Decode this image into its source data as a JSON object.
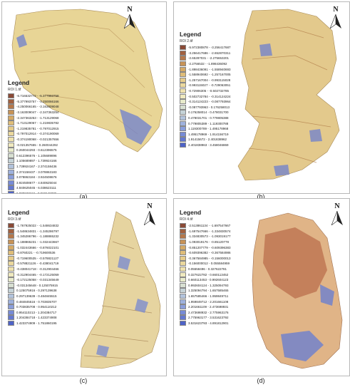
{
  "panels": {
    "a": {
      "caption": "(a)",
      "legend_title": "Legend",
      "file": "ROI 1.tif",
      "north": "N",
      "ranges": [
        "-6.716532772 - -5.377993758",
        "-5.377993757 - -4.250066166",
        "-4.250066165 - -3.163009048",
        "-3.163009047 - -2.347363254",
        "-2.347363253 - -1.713129068",
        "-1.713129067 - -1.219835782",
        "-1.219835781 - -0.797012915",
        "-0.797012914 - -0.374190069",
        "-0.374190068 - -0.021357656",
        "-0.021357655 - 0.260044292",
        "0.260044293 - 0.612396575",
        "0.612396576 - 1.105689896",
        "1.105689897 - 1.739924166",
        "1.739924167 - 2.374158436",
        "2.374158437 - 3.078863183",
        "3.078863184 - 3.924508676",
        "3.924508677 - 4.840625044",
        "4.840625045 - 6.038623111",
        "6.038623112 - 9.562146836"
      ]
    },
    "b": {
      "caption": "(b)",
      "legend_title": "Legend",
      "file": "ROI 2.tif",
      "north": "N",
      "ranges": [
        "-5.972380878 - -3.256417687",
        "-3.256417686 - -2.652870311",
        "-2.65287031 - -2.275653201",
        "-2.2756532 - -1.898436092",
        "-1.898436091 - -1.558940693",
        "-1.558940692 - -1.257167005",
        "-1.257167004 - -0.993115028",
        "-0.993115027 - -0.729063051",
        "-0.72906305 - -0.502732785",
        "-0.502732784 - -0.314124224",
        "-0.314124223 - -0.087793964",
        "-0.087793963 - 0.176258013",
        "0.176258014 - 0.478031700",
        "0.478031701 - 0.779805388",
        "0.779805389 - 1.119300788",
        "1.119300789 - 1.495178968",
        "1.495178969 - 1.914156719",
        "1.91415672 - 2.401838962",
        "2.401838963 - 3.458046869"
      ]
    },
    "c": {
      "caption": "(c)",
      "legend_title": "Legend",
      "file": "ROI 3.tif",
      "north": "N",
      "ranges": [
        "-1.767925022 - -1.548634832",
        "-1.548634831 - -1.345286797",
        "-1.345286796 - -1.188865232",
        "-1.188865231 - -1.032443667",
        "-1.032443666 - -0.876022101",
        "-0.8760221 - -0.719600536",
        "-0.719600535 - -0.578821127",
        "-0.578821126 - -0.438041719",
        "-0.438041718 - -0.312904466",
        "-0.312904465 - -0.172125059",
        "-0.172125058 - -0.031345649",
        "-0.031345648 - 0.125075915",
        "0.125075916 - 0.297139638",
        "0.297139639 - 0.484845515",
        "0.484845516 - 0.703835707",
        "0.703835708 - 0.954110212",
        "0.954110213 - 1.204384717",
        "1.204384718 - 1.423374908",
        "1.423374909 - 1.751860195"
      ]
    },
    "d": {
      "caption": "(d)",
      "legend_title": "Legend",
      "file": "ROI 4.tif",
      "north": "N",
      "ranges": [
        "-2.513861134 - -1.697547667",
        "-1.697547666 - -1.334830574",
        "-1.334830573 - -1.093019177",
        "-1.093019176 - -0.85120778",
        "-0.851207779 - -0.609396383",
        "-0.609396382 - -0.367584986",
        "-0.367584985 - -0.156000013",
        "-0.156000012 - 0.055584959",
        "0.05558496 - 0.327622781",
        "0.327622782 - 0.660113452",
        "0.660113453 - 0.992604123",
        "0.992604124 - 1.325094793",
        "1.325094794 - 1.657585465",
        "1.657585466 - 1.959849711",
        "1.959849712 - 2.201661108",
        "2.201661109 - 2.473698931",
        "2.473698932 - 2.775963176",
        "2.775963177 - 3.531623792",
        "3.531623793 - 4.891812901"
      ]
    }
  },
  "palette": [
    "#8a4a36",
    "#a1603f",
    "#b5784a",
    "#c79357",
    "#d5aa66",
    "#dfbd79",
    "#e6cc8b",
    "#ebd89d",
    "#efe2ae",
    "#f0eabf",
    "#e8ebcb",
    "#d8e0d2",
    "#c5d3d8",
    "#b2c3dc",
    "#9eb1dd",
    "#8a9edb",
    "#778bd6",
    "#6478d0",
    "#4e63c7"
  ]
}
